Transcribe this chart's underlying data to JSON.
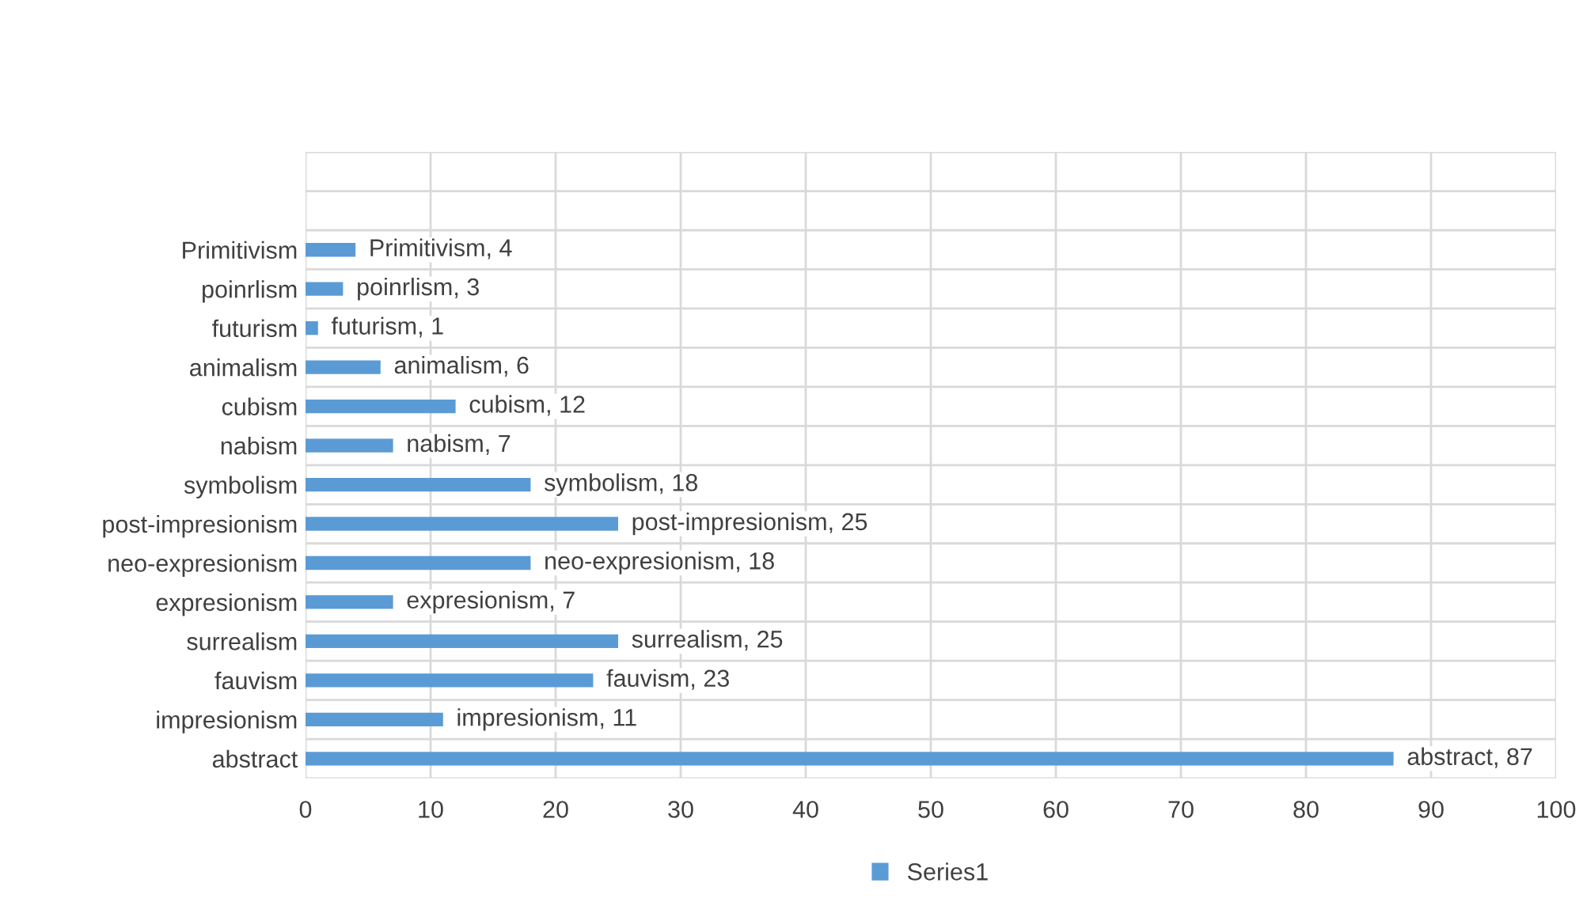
{
  "chart_data": {
    "type": "bar",
    "orientation": "horizontal",
    "categories": [
      null,
      null,
      "Primitivism",
      "poinrlism",
      "futurism",
      "animalism",
      "cubism",
      "nabism",
      "symbolism",
      "post-impresionism",
      "neo-expresionism",
      "expresionism",
      "surrealism",
      "fauvism",
      "impresionism",
      "abstract"
    ],
    "series": [
      {
        "name": "Series1",
        "color": "#5b9bd5",
        "values": [
          null,
          null,
          4,
          3,
          1,
          6,
          12,
          7,
          18,
          25,
          18,
          7,
          25,
          23,
          11,
          87
        ],
        "value_labels": [
          null,
          null,
          "Primitivism, 4",
          "poinrlism, 3",
          "futurism, 1",
          "animalism, 6",
          "cubism, 12",
          "nabism, 7",
          "symbolism, 18",
          "post-impresionism, 25",
          "neo-expresionism, 18",
          "expresionism, 7",
          "surrealism, 25",
          "fauvism, 23",
          "impresionism, 11",
          "abstract, 87"
        ]
      }
    ],
    "xlim": [
      0,
      100
    ],
    "xticks": [
      0,
      10,
      20,
      30,
      40,
      50,
      60,
      70,
      80,
      90,
      100
    ],
    "grid": true,
    "legend": "bottom"
  }
}
